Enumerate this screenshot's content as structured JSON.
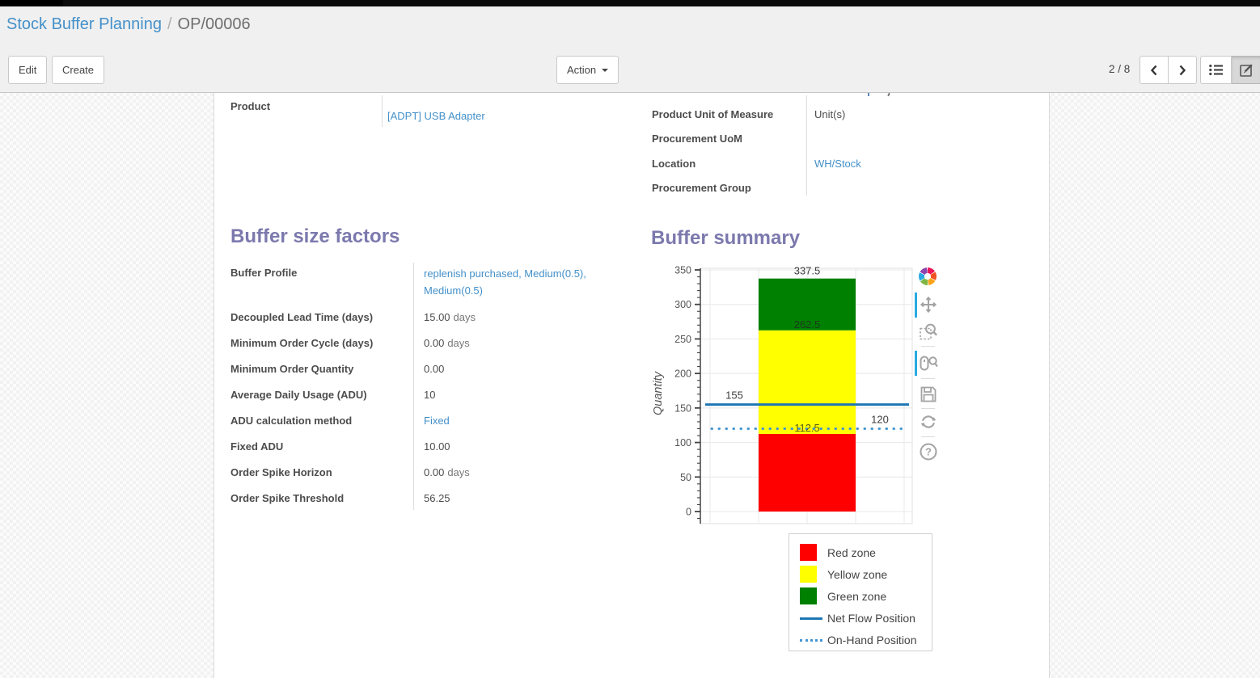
{
  "header": {
    "breadcrumb": {
      "parent": "Stock Buffer Planning",
      "separator": "/",
      "current": "OP/00006"
    },
    "buttons": {
      "edit": "Edit",
      "create": "Create",
      "action": "Action"
    },
    "pager": {
      "count": "2 / 8"
    }
  },
  "form": {
    "product": {
      "label": "Product",
      "value": "[ADPT] USB Adapter"
    },
    "right_group": [
      {
        "label": "Product Unit of Measure",
        "value": "Unit(s)",
        "link": false
      },
      {
        "label": "Procurement UoM",
        "value": "",
        "link": false
      },
      {
        "label": "Location",
        "value": "WH/Stock",
        "link": true
      },
      {
        "label": "Procurement Group",
        "value": "",
        "link": false
      }
    ],
    "sections": {
      "factors": "Buffer size factors",
      "summary": "Buffer summary"
    },
    "factors": [
      {
        "label": "Buffer Profile",
        "value": "replenish purchased, Medium(0.5), Medium(0.5)",
        "link": true,
        "wrap": true
      },
      {
        "label": "Decoupled Lead Time (days)",
        "value": "15.00",
        "unit": "days"
      },
      {
        "label": "Minimum Order Cycle (days)",
        "value": "0.00",
        "unit": "days"
      },
      {
        "label": "Minimum Order Quantity",
        "value": "0.00"
      },
      {
        "label": "Average Daily Usage (ADU)",
        "value": "10"
      },
      {
        "label": "ADU calculation method",
        "value": "Fixed",
        "link": true
      },
      {
        "label": "Fixed ADU",
        "value": "10.00"
      },
      {
        "label": "Order Spike Horizon",
        "value": "0.00",
        "unit": "days"
      },
      {
        "label": "Order Spike Threshold",
        "value": "56.25"
      }
    ]
  },
  "chart_data": {
    "type": "bar",
    "title": "",
    "xlabel": "",
    "ylabel": "Quantity",
    "ylim": [
      0,
      350
    ],
    "yticks": [
      0,
      50,
      100,
      150,
      200,
      250,
      300,
      350
    ],
    "grid": true,
    "zones": [
      {
        "name": "Red zone",
        "from": 0,
        "to": 112.5,
        "color": "#ff0000"
      },
      {
        "name": "Yellow zone",
        "from": 112.5,
        "to": 262.5,
        "color": "#ffff00"
      },
      {
        "name": "Green zone",
        "from": 262.5,
        "to": 337.5,
        "color": "#008000"
      }
    ],
    "lines": [
      {
        "name": "Net Flow Position",
        "value": 155,
        "style": "solid",
        "color": "#1f77b4",
        "label": "155"
      },
      {
        "name": "On-Hand Position",
        "value": 120,
        "style": "dotted",
        "color": "#4396d2",
        "label": "120"
      }
    ],
    "zone_labels": [
      "337.5",
      "262.5",
      "112.5"
    ],
    "legend": [
      {
        "label": "Red zone",
        "type": "square",
        "color": "#ff0000"
      },
      {
        "label": "Yellow zone",
        "type": "square",
        "color": "#ffff00"
      },
      {
        "label": "Green zone",
        "type": "square",
        "color": "#008000"
      },
      {
        "label": "Net Flow Position",
        "type": "line",
        "color": "#1f77b4"
      },
      {
        "label": "On-Hand Position",
        "type": "dotted",
        "color": "#4396d2"
      }
    ],
    "legend_position": "below"
  }
}
